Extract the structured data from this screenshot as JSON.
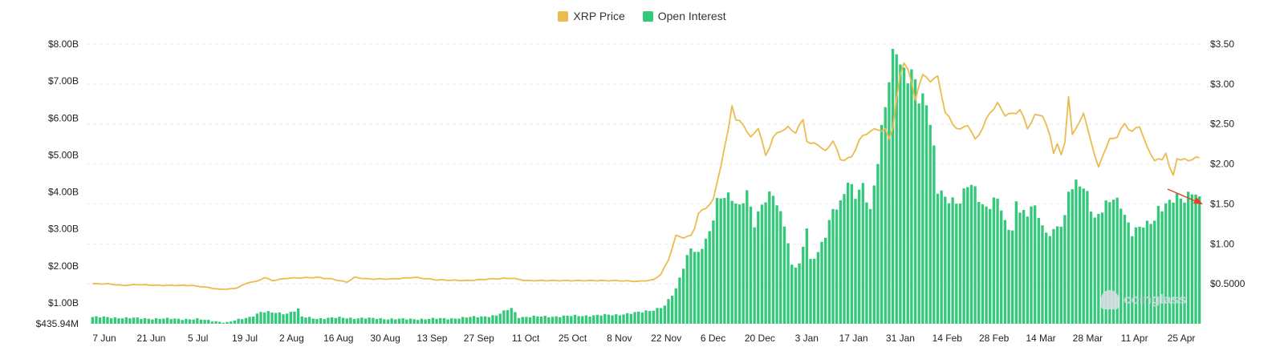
{
  "chart_data": {
    "type": "bar+line",
    "legend": [
      {
        "name": "XRP Price",
        "color": "#ebbb4e"
      },
      {
        "name": "Open Interest",
        "color": "#34c87a"
      }
    ],
    "x_ticks": [
      "7 Jun",
      "21 Jun",
      "5 Jul",
      "19 Jul",
      "2 Aug",
      "16 Aug",
      "30 Aug",
      "13 Sep",
      "27 Sep",
      "11 Oct",
      "25 Oct",
      "8 Nov",
      "22 Nov",
      "6 Dec",
      "20 Dec",
      "3 Jan",
      "17 Jan",
      "31 Jan",
      "14 Feb",
      "28 Feb",
      "14 Mar",
      "28 Mar",
      "11 Apr",
      "25 Apr"
    ],
    "y_left": {
      "ticks": [
        "$8.00B",
        "$7.00B",
        "$6.00B",
        "$5.00B",
        "$4.00B",
        "$3.00B",
        "$2.00B",
        "$1.00B",
        "$435.94M"
      ],
      "tick_values": [
        8,
        7,
        6,
        5,
        4,
        3,
        2,
        1,
        0.43594
      ],
      "min": 0.43594,
      "max": 8.0,
      "unit": "B"
    },
    "y_right": {
      "ticks": [
        "$3.50",
        "$3.00",
        "$2.50",
        "$2.00",
        "$1.50",
        "$1.00",
        "$0.5000"
      ],
      "tick_values": [
        3.5,
        3.0,
        2.5,
        2.0,
        1.5,
        1.0,
        0.5
      ],
      "min": 0.0,
      "max": 3.5
    },
    "series": [
      {
        "name": "Open Interest",
        "axis": "left",
        "knots": [
          [
            0,
            0.62
          ],
          [
            14,
            0.58
          ],
          [
            28,
            0.56
          ],
          [
            36,
            0.47
          ],
          [
            42,
            0.62
          ],
          [
            45,
            0.75
          ],
          [
            52,
            0.72
          ],
          [
            55,
            0.82
          ],
          [
            56,
            0.62
          ],
          [
            60,
            0.58
          ],
          [
            66,
            0.6
          ],
          [
            84,
            0.56
          ],
          [
            96,
            0.58
          ],
          [
            108,
            0.66
          ],
          [
            112,
            0.86
          ],
          [
            114,
            0.62
          ],
          [
            126,
            0.64
          ],
          [
            140,
            0.68
          ],
          [
            147,
            0.75
          ],
          [
            150,
            0.82
          ],
          [
            153,
            0.92
          ],
          [
            156,
            1.35
          ],
          [
            158,
            2.0
          ],
          [
            160,
            2.55
          ],
          [
            162,
            2.3
          ],
          [
            165,
            2.85
          ],
          [
            167,
            3.8
          ],
          [
            169,
            4.0
          ],
          [
            171,
            3.8
          ],
          [
            173,
            3.5
          ],
          [
            175,
            4.0
          ],
          [
            177,
            3.2
          ],
          [
            179,
            3.7
          ],
          [
            182,
            3.9
          ],
          [
            183,
            3.6
          ],
          [
            185,
            3.2
          ],
          [
            187,
            2.05
          ],
          [
            189,
            2.0
          ],
          [
            191,
            3.0
          ],
          [
            192,
            2.1
          ],
          [
            194,
            2.4
          ],
          [
            196,
            2.9
          ],
          [
            198,
            3.5
          ],
          [
            200,
            3.6
          ],
          [
            202,
            4.3
          ],
          [
            204,
            4.0
          ],
          [
            206,
            4.2
          ],
          [
            208,
            3.4
          ],
          [
            210,
            4.8
          ],
          [
            212,
            6.5
          ],
          [
            214,
            7.8
          ],
          [
            215,
            8.0
          ],
          [
            216,
            7.3
          ],
          [
            218,
            7.0
          ],
          [
            220,
            7.1
          ],
          [
            221,
            6.6
          ],
          [
            223,
            6.6
          ],
          [
            225,
            5.1
          ],
          [
            226,
            4.0
          ],
          [
            228,
            3.8
          ],
          [
            232,
            3.8
          ],
          [
            234,
            4.2
          ],
          [
            236,
            4.0
          ],
          [
            238,
            3.6
          ],
          [
            240,
            3.7
          ],
          [
            242,
            3.9
          ],
          [
            244,
            3.1
          ],
          [
            246,
            2.9
          ],
          [
            247,
            3.7
          ],
          [
            249,
            3.5
          ],
          [
            250,
            3.4
          ],
          [
            251,
            3.7
          ],
          [
            253,
            3.3
          ],
          [
            255,
            2.8
          ],
          [
            257,
            3.0
          ],
          [
            260,
            3.3
          ],
          [
            261,
            4.0
          ],
          [
            264,
            4.2
          ],
          [
            266,
            4.0
          ],
          [
            268,
            3.3
          ],
          [
            271,
            3.6
          ],
          [
            273,
            3.8
          ],
          [
            275,
            3.7
          ],
          [
            278,
            2.9
          ],
          [
            282,
            3.1
          ],
          [
            284,
            3.3
          ],
          [
            285,
            3.6
          ],
          [
            288,
            3.7
          ],
          [
            290,
            3.8
          ],
          [
            292,
            3.8
          ],
          [
            294,
            4.1
          ],
          [
            295,
            4.0
          ],
          [
            296,
            3.8
          ]
        ]
      },
      {
        "name": "XRP Price",
        "axis": "right",
        "knots": [
          [
            0,
            0.5
          ],
          [
            4,
            0.5
          ],
          [
            8,
            0.48
          ],
          [
            12,
            0.49
          ],
          [
            18,
            0.48
          ],
          [
            26,
            0.48
          ],
          [
            30,
            0.46
          ],
          [
            34,
            0.43
          ],
          [
            38,
            0.44
          ],
          [
            40,
            0.48
          ],
          [
            42,
            0.52
          ],
          [
            44,
            0.53
          ],
          [
            46,
            0.58
          ],
          [
            48,
            0.54
          ],
          [
            52,
            0.57
          ],
          [
            60,
            0.58
          ],
          [
            64,
            0.56
          ],
          [
            68,
            0.52
          ],
          [
            70,
            0.58
          ],
          [
            74,
            0.56
          ],
          [
            80,
            0.56
          ],
          [
            86,
            0.58
          ],
          [
            92,
            0.55
          ],
          [
            100,
            0.54
          ],
          [
            106,
            0.56
          ],
          [
            112,
            0.57
          ],
          [
            116,
            0.54
          ],
          [
            122,
            0.54
          ],
          [
            130,
            0.54
          ],
          [
            140,
            0.54
          ],
          [
            146,
            0.53
          ],
          [
            150,
            0.55
          ],
          [
            152,
            0.62
          ],
          [
            154,
            0.8
          ],
          [
            156,
            1.1
          ],
          [
            158,
            1.08
          ],
          [
            160,
            1.1
          ],
          [
            161,
            1.2
          ],
          [
            162,
            1.38
          ],
          [
            164,
            1.45
          ],
          [
            166,
            1.55
          ],
          [
            168,
            1.98
          ],
          [
            170,
            2.42
          ],
          [
            171,
            2.75
          ],
          [
            172,
            2.55
          ],
          [
            174,
            2.5
          ],
          [
            176,
            2.32
          ],
          [
            178,
            2.46
          ],
          [
            180,
            2.1
          ],
          [
            182,
            2.33
          ],
          [
            184,
            2.42
          ],
          [
            186,
            2.45
          ],
          [
            188,
            2.4
          ],
          [
            190,
            2.55
          ],
          [
            191,
            2.3
          ],
          [
            192,
            2.25
          ],
          [
            194,
            2.25
          ],
          [
            196,
            2.15
          ],
          [
            198,
            2.3
          ],
          [
            200,
            2.05
          ],
          [
            203,
            2.08
          ],
          [
            205,
            2.3
          ],
          [
            208,
            2.42
          ],
          [
            212,
            2.43
          ],
          [
            213,
            2.3
          ],
          [
            214,
            2.47
          ],
          [
            215,
            2.82
          ],
          [
            216,
            3.1
          ],
          [
            217,
            3.28
          ],
          [
            218,
            3.2
          ],
          [
            219,
            3.0
          ],
          [
            220,
            2.8
          ],
          [
            221,
            3.0
          ],
          [
            222,
            3.1
          ],
          [
            224,
            3.05
          ],
          [
            226,
            3.08
          ],
          [
            227,
            2.88
          ],
          [
            228,
            2.65
          ],
          [
            230,
            2.5
          ],
          [
            232,
            2.42
          ],
          [
            234,
            2.5
          ],
          [
            236,
            2.3
          ],
          [
            238,
            2.45
          ],
          [
            240,
            2.65
          ],
          [
            242,
            2.75
          ],
          [
            244,
            2.62
          ],
          [
            246,
            2.62
          ],
          [
            248,
            2.68
          ],
          [
            250,
            2.45
          ],
          [
            252,
            2.6
          ],
          [
            254,
            2.62
          ],
          [
            256,
            2.35
          ],
          [
            257,
            2.15
          ],
          [
            258,
            2.25
          ],
          [
            259,
            2.1
          ],
          [
            260,
            2.28
          ],
          [
            261,
            2.85
          ],
          [
            262,
            2.35
          ],
          [
            264,
            2.55
          ],
          [
            265,
            2.62
          ],
          [
            266,
            2.45
          ],
          [
            267,
            2.3
          ],
          [
            268,
            2.1
          ],
          [
            269,
            1.95
          ],
          [
            270,
            2.1
          ],
          [
            272,
            2.3
          ],
          [
            274,
            2.35
          ],
          [
            276,
            2.5
          ],
          [
            278,
            2.4
          ],
          [
            280,
            2.48
          ],
          [
            282,
            2.2
          ],
          [
            284,
            2.05
          ],
          [
            286,
            2.05
          ],
          [
            287,
            2.15
          ],
          [
            288,
            1.95
          ],
          [
            289,
            1.85
          ],
          [
            290,
            2.08
          ],
          [
            291,
            2.05
          ],
          [
            293,
            2.05
          ],
          [
            296,
            2.08
          ]
        ]
      }
    ],
    "annotation": {
      "type": "arrow",
      "color": "#e0402b",
      "note": "downtrend"
    },
    "grid": "horizontal",
    "legend_position": "top-center"
  },
  "watermark": "coinglass"
}
